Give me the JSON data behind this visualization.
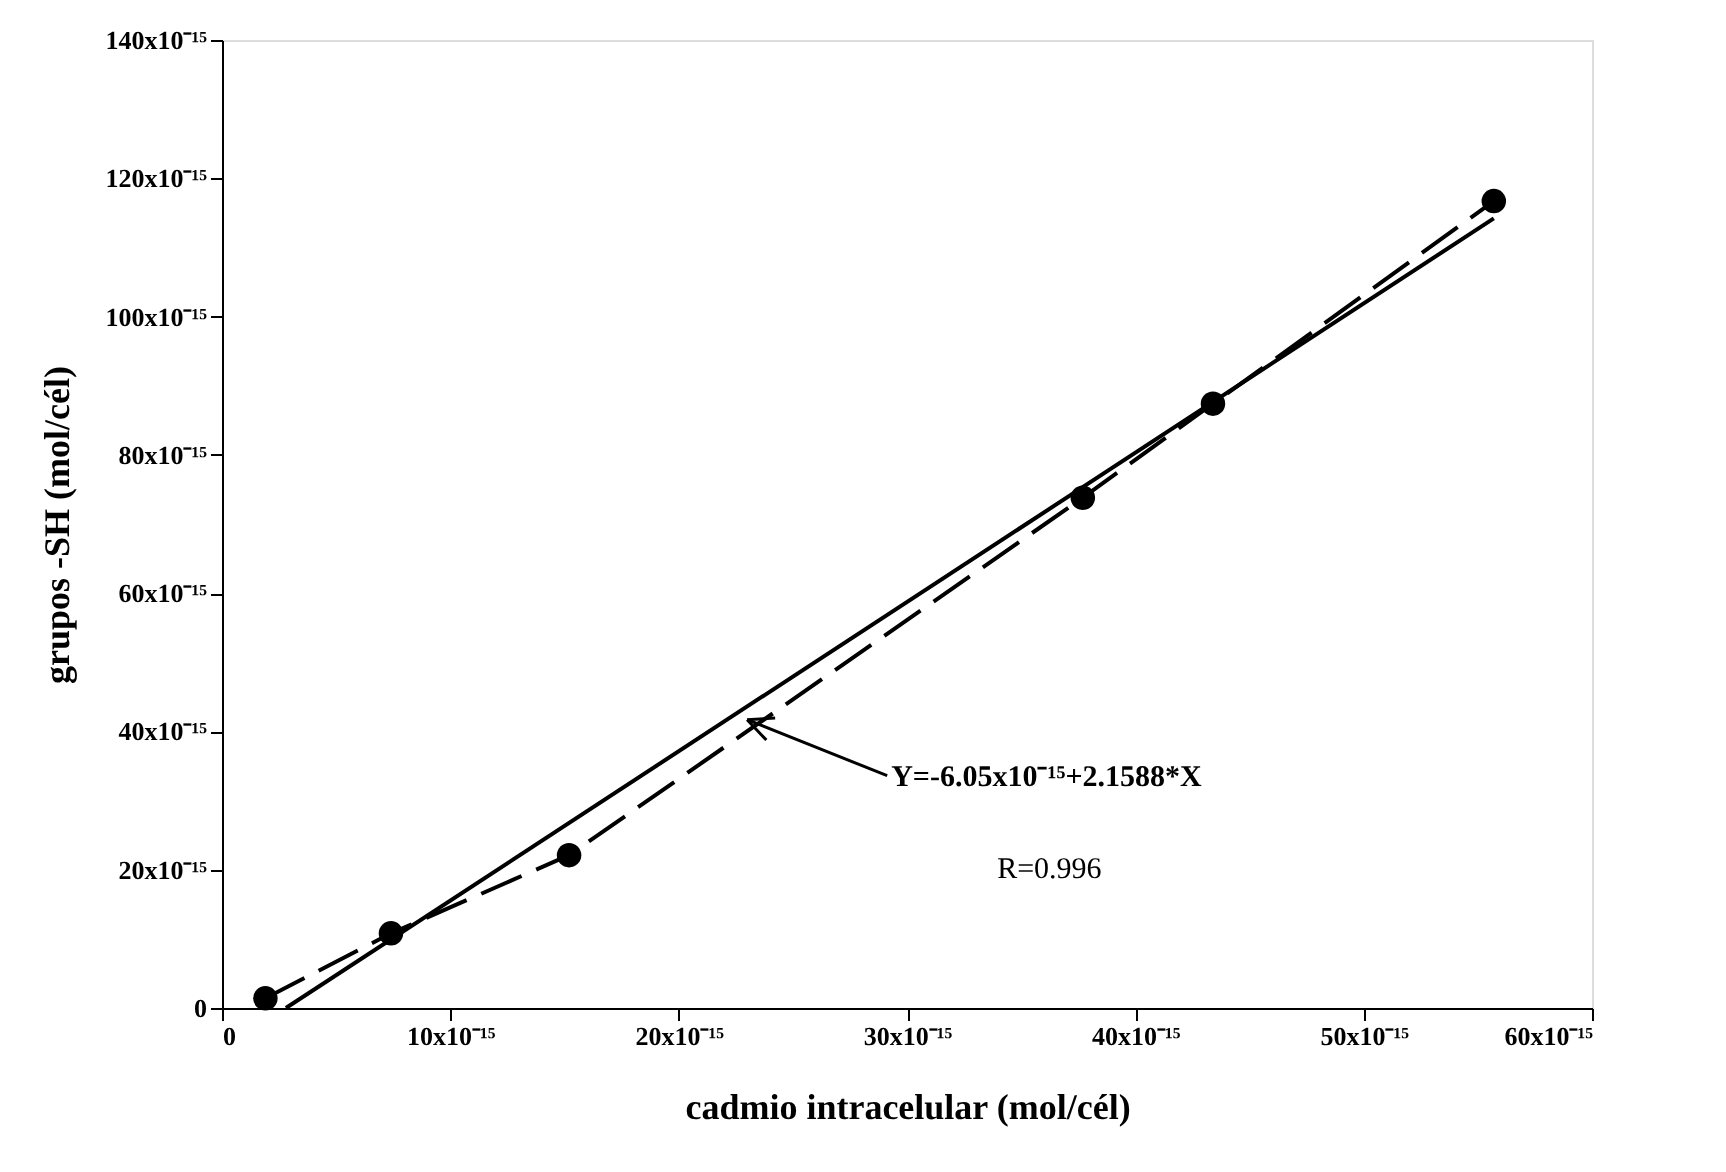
{
  "chart_data": {
    "type": "line",
    "xlabel": "cadmio intracelular (mol/cél)",
    "ylabel": "grupos -SH (mol/cél)",
    "xlim": [
      0,
      6e-14
    ],
    "ylim": [
      0,
      1.4e-13
    ],
    "xticks": [
      0,
      {
        "value": 1e-14,
        "label": "10x10⁻¹⁵"
      },
      {
        "value": 2e-14,
        "label": "20x10⁻¹⁵"
      },
      {
        "value": 3e-14,
        "label": "30x10⁻¹⁵"
      },
      {
        "value": 4e-14,
        "label": "40x10⁻¹⁵"
      },
      {
        "value": 5e-14,
        "label": "50x10⁻¹⁵"
      },
      {
        "value": 6e-14,
        "label": "60x10⁻¹⁵"
      }
    ],
    "yticks": [
      0,
      {
        "value": 2e-14,
        "label": "20x10⁻¹⁵"
      },
      {
        "value": 4e-14,
        "label": "40x10⁻¹⁵"
      },
      {
        "value": 6e-14,
        "label": "60x10⁻¹⁵"
      },
      {
        "value": 8e-14,
        "label": "80x10⁻¹⁵"
      },
      {
        "value": 1e-13,
        "label": "100x10⁻¹⁵"
      },
      {
        "value": 1.2e-13,
        "label": "120x10⁻¹⁵"
      },
      {
        "value": 1.4e-13,
        "label": "140x10⁻¹⁵"
      }
    ],
    "grid": false,
    "series": [
      {
        "color": "#000000",
        "marker": "circle",
        "line_style": "dashed",
        "x": [
          1.9e-15,
          7.4e-15,
          1.52e-14,
          3.77e-14,
          4.34e-14,
          5.57e-14
        ],
        "values": [
          1.4e-15,
          1.08e-14,
          2.21e-14,
          7.38e-14,
          8.74e-14,
          1.167e-13
        ]
      },
      {
        "color": "#000000",
        "marker": "none",
        "line_style": "solid",
        "x": [
          2.8e-15,
          5.57e-14
        ],
        "values": [
          0,
          1.142e-13
        ]
      }
    ],
    "annotations": [
      {
        "text": "Y=-6.05x10⁻¹⁵+2.1588*X",
        "x": 2.3e-14,
        "y": 4.17e-14
      },
      "R=0.996"
    ]
  }
}
